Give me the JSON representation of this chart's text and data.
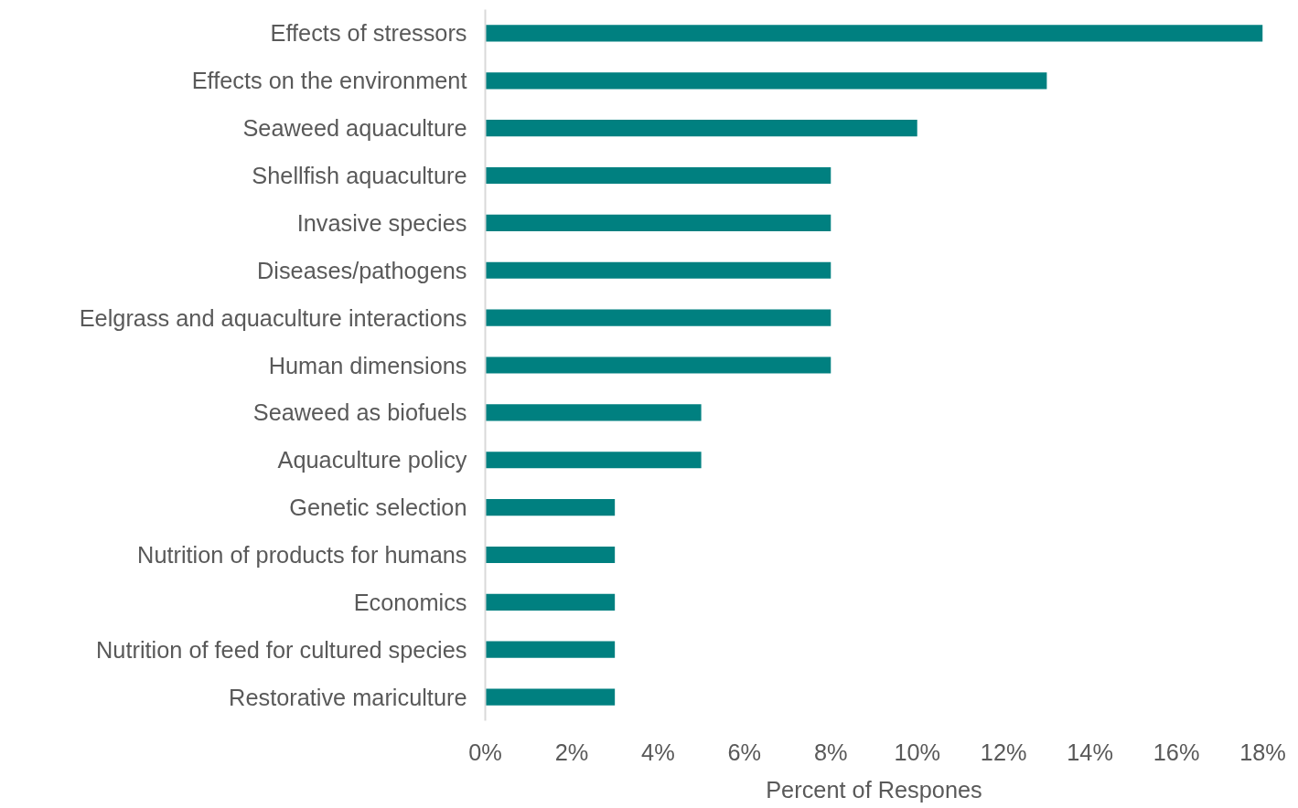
{
  "chart_data": {
    "type": "bar",
    "orientation": "horizontal",
    "xlabel": "Percent of Respones",
    "categories": [
      "Effects of stressors",
      "Effects on the environment",
      "Seaweed aquaculture",
      "Shellfish aquaculture",
      "Invasive species",
      "Diseases/pathogens",
      "Eelgrass and aquaculture interactions",
      "Human dimensions",
      "Seaweed as biofuels",
      "Aquaculture policy",
      "Genetic selection",
      "Nutrition of products for humans",
      "Economics",
      "Nutrition of feed for cultured species",
      "Restorative mariculture"
    ],
    "values": [
      18,
      13,
      10,
      8,
      8,
      8,
      8,
      8,
      5,
      5,
      3,
      3,
      3,
      3,
      3
    ],
    "color": "#008080",
    "xlim": [
      0,
      18
    ],
    "xticks": [
      {
        "value": 0,
        "label": "0%"
      },
      {
        "value": 2,
        "label": "2%"
      },
      {
        "value": 4,
        "label": "4%"
      },
      {
        "value": 6,
        "label": "6%"
      },
      {
        "value": 8,
        "label": "8%"
      },
      {
        "value": 10,
        "label": "10%"
      },
      {
        "value": 12,
        "label": "12%"
      },
      {
        "value": 14,
        "label": "14%"
      },
      {
        "value": 16,
        "label": "16%"
      },
      {
        "value": 18,
        "label": "18%"
      }
    ],
    "grid": false,
    "legend": false
  }
}
